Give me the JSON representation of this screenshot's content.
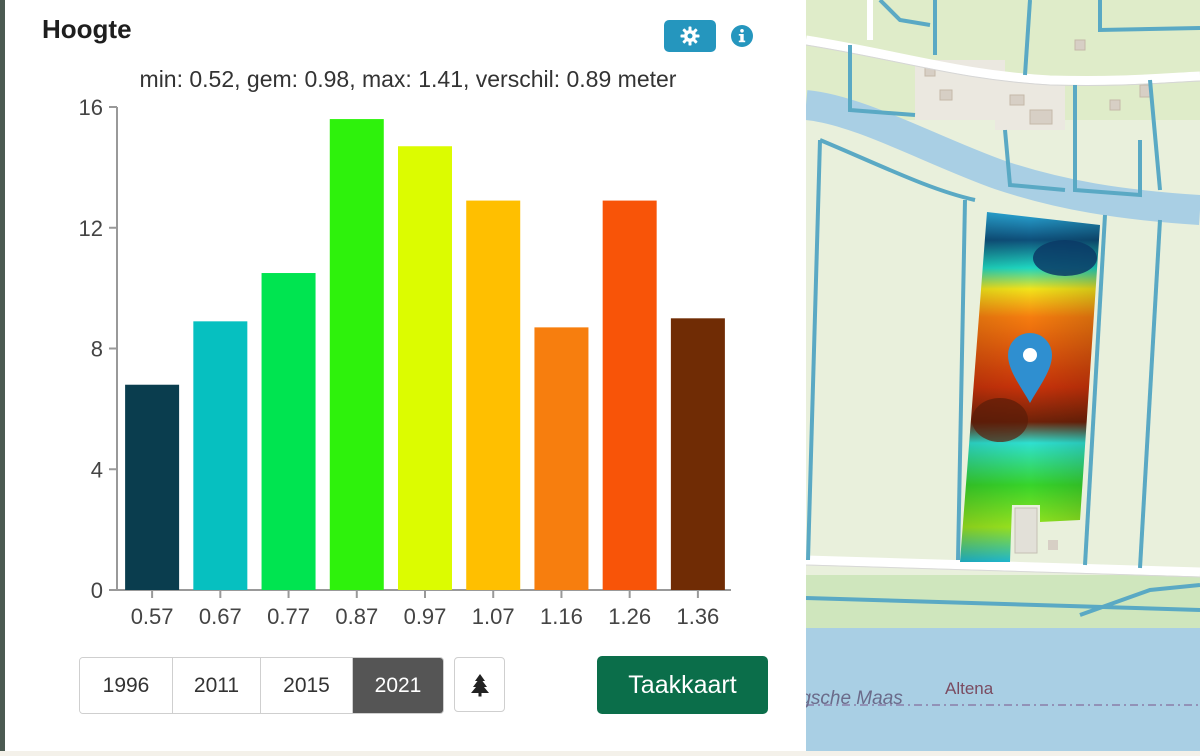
{
  "panel": {
    "title": "Hoogte",
    "stats": "min: 0.52, gem: 0.98, max: 1.41, verschil: 0.89 meter",
    "settings_icon": "gear-icon",
    "info_icon": "info-icon"
  },
  "chart_data": {
    "type": "bar",
    "categories": [
      "0.57",
      "0.67",
      "0.77",
      "0.87",
      "0.97",
      "1.07",
      "1.16",
      "1.26",
      "1.36"
    ],
    "values": [
      6.8,
      8.9,
      10.5,
      15.6,
      14.7,
      12.9,
      8.7,
      12.9,
      9.0
    ],
    "colors": [
      "#0a3d4e",
      "#06c0c0",
      "#00e450",
      "#2ef20c",
      "#dcfc00",
      "#ffbf00",
      "#f77e0e",
      "#f85408",
      "#702c05"
    ],
    "yticks": [
      "0",
      "4",
      "8",
      "12",
      "16"
    ],
    "ylim": [
      0,
      16
    ],
    "grid": false,
    "title": "",
    "xlabel": "",
    "ylabel": ""
  },
  "years": {
    "items": [
      {
        "label": "1996"
      },
      {
        "label": "2011"
      },
      {
        "label": "2015"
      },
      {
        "label": "2021",
        "active": true
      }
    ]
  },
  "tree_icon": "tree-icon",
  "taakkaart_label": "Taakkaart",
  "map": {
    "place_label": "Altena",
    "river_label": "rgsche Maas",
    "marker_icon": "map-pin-icon",
    "colors": {
      "water": "#a8d0e6",
      "channel": "#5ba6c2",
      "field": "#e7efd9",
      "road": "#ffffff"
    }
  }
}
